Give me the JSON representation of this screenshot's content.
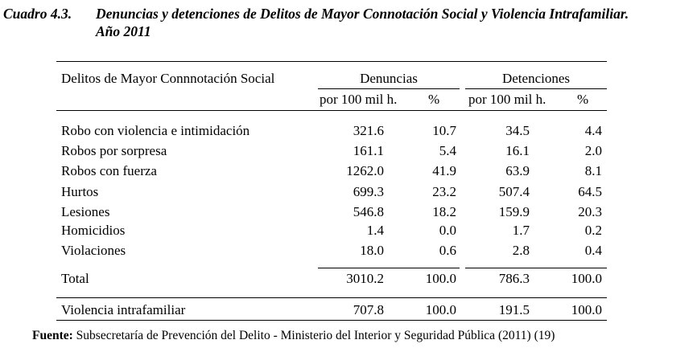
{
  "caption": {
    "number": "Cuadro 4.3.",
    "title_line1": "Denuncias y detenciones de Delitos de Mayor Connotación Social y Violencia Intrafamiliar.",
    "title_line2": "Año 2011"
  },
  "table": {
    "row_header": "Delitos de Mayor Connnotación Social",
    "group_denuncias": "Denuncias",
    "group_detenciones": "Detenciones",
    "sub_rate": "por 100 mil h.",
    "sub_pct": "%",
    "rows": [
      {
        "label": "Robo con violencia e intimidación",
        "den_rate": "321.6",
        "den_pct": "10.7",
        "det_rate": "34.5",
        "det_pct": "4.4"
      },
      {
        "label": "Robos por sorpresa",
        "den_rate": "161.1",
        "den_pct": "5.4",
        "det_rate": "16.1",
        "det_pct": "2.0"
      },
      {
        "label": "Robos con fuerza",
        "den_rate": "1262.0",
        "den_pct": "41.9",
        "det_rate": "63.9",
        "det_pct": "8.1"
      },
      {
        "label": "Hurtos",
        "den_rate": "699.3",
        "den_pct": "23.2",
        "det_rate": "507.4",
        "det_pct": "64.5"
      },
      {
        "label": "Lesiones",
        "den_rate": "546.8",
        "den_pct": "18.2",
        "det_rate": "159.9",
        "det_pct": "20.3"
      },
      {
        "label": "Homicidios",
        "den_rate": "1.4",
        "den_pct": "0.0",
        "det_rate": "1.7",
        "det_pct": "0.2"
      },
      {
        "label": "Violaciones",
        "den_rate": "18.0",
        "den_pct": "0.6",
        "det_rate": "2.8",
        "det_pct": "0.4"
      }
    ],
    "total": {
      "label": "Total",
      "den_rate": "3010.2",
      "den_pct": "100.0",
      "det_rate": "786.3",
      "det_pct": "100.0"
    },
    "vif": {
      "label": "Violencia intrafamiliar",
      "den_rate": "707.8",
      "den_pct": "100.0",
      "det_rate": "191.5",
      "det_pct": "100.0"
    }
  },
  "source": {
    "label": "Fuente:",
    "text": " Subsecretaría de Prevención del Delito -  Ministerio del Interior y Seguridad Pública (2011) (19)"
  }
}
